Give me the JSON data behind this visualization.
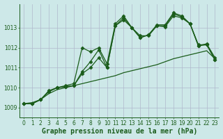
{
  "title": "Graphe pression niveau de la mer (hPa)",
  "background_color": "#cde8e8",
  "grid_color": "#b0b8cc",
  "line_color": "#1a5c1a",
  "xlim": [
    -0.5,
    23.5
  ],
  "ylim": [
    1008.5,
    1014.2
  ],
  "yticks": [
    1009,
    1010,
    1011,
    1012,
    1013
  ],
  "xticks": [
    0,
    1,
    2,
    3,
    4,
    5,
    6,
    7,
    8,
    9,
    10,
    11,
    12,
    13,
    14,
    15,
    16,
    17,
    18,
    19,
    20,
    21,
    22,
    23
  ],
  "series": [
    {
      "x": [
        0,
        1,
        2,
        3,
        4,
        5,
        6,
        7,
        8,
        9,
        10,
        11,
        12,
        13,
        14,
        15,
        16,
        17,
        18,
        19,
        20,
        21,
        22,
        23
      ],
      "y": [
        1009.2,
        1009.2,
        1009.4,
        1009.8,
        1010.0,
        1010.05,
        1010.1,
        1010.7,
        1011.0,
        1011.5,
        1011.0,
        1013.1,
        1013.4,
        1013.0,
        1012.6,
        1012.6,
        1013.1,
        1013.05,
        1013.6,
        1013.5,
        1013.2,
        1012.1,
        1012.2,
        1011.5
      ],
      "marker": "D",
      "markersize": 2.5,
      "linewidth": 0.9
    },
    {
      "x": [
        0,
        1,
        2,
        3,
        4,
        5,
        6,
        7,
        8,
        9,
        10,
        11,
        12,
        13,
        14,
        15,
        16,
        17,
        18,
        19,
        20,
        21,
        22,
        23
      ],
      "y": [
        1009.2,
        1009.2,
        1009.4,
        1009.8,
        1010.0,
        1010.05,
        1010.1,
        1010.8,
        1011.3,
        1011.9,
        1011.0,
        1013.1,
        1013.5,
        1013.0,
        1012.5,
        1012.65,
        1013.1,
        1013.1,
        1013.7,
        1013.55,
        1013.2,
        1012.1,
        1012.15,
        1011.4
      ],
      "marker": "D",
      "markersize": 2.5,
      "linewidth": 0.9
    },
    {
      "x": [
        0,
        1,
        2,
        3,
        4,
        5,
        6,
        7,
        8,
        9,
        10,
        11,
        12,
        13,
        14,
        15,
        16,
        17,
        18,
        19,
        20,
        21,
        22,
        23
      ],
      "y": [
        1009.2,
        1009.2,
        1009.4,
        1009.85,
        1010.0,
        1010.1,
        1010.2,
        1012.0,
        1011.8,
        1012.0,
        1011.2,
        1013.2,
        1013.6,
        1013.0,
        1012.5,
        1012.65,
        1013.15,
        1013.15,
        1013.75,
        1013.6,
        1013.2,
        1012.15,
        1012.15,
        1011.4
      ],
      "marker": "D",
      "markersize": 2.5,
      "linewidth": 0.9
    },
    {
      "x": [
        0,
        1,
        2,
        3,
        4,
        5,
        6,
        7,
        8,
        9,
        10,
        11,
        12,
        13,
        14,
        15,
        16,
        17,
        18,
        19,
        20,
        21,
        22,
        23
      ],
      "y": [
        1009.2,
        1009.25,
        1009.4,
        1009.7,
        1009.9,
        1010.0,
        1010.1,
        1010.2,
        1010.3,
        1010.4,
        1010.5,
        1010.6,
        1010.75,
        1010.85,
        1010.95,
        1011.05,
        1011.15,
        1011.3,
        1011.45,
        1011.55,
        1011.65,
        1011.75,
        1011.85,
        1011.45
      ],
      "marker": null,
      "markersize": 0,
      "linewidth": 0.9
    }
  ],
  "title_fontsize": 7,
  "tick_fontsize": 5.5,
  "ylabel_fontsize": 6
}
